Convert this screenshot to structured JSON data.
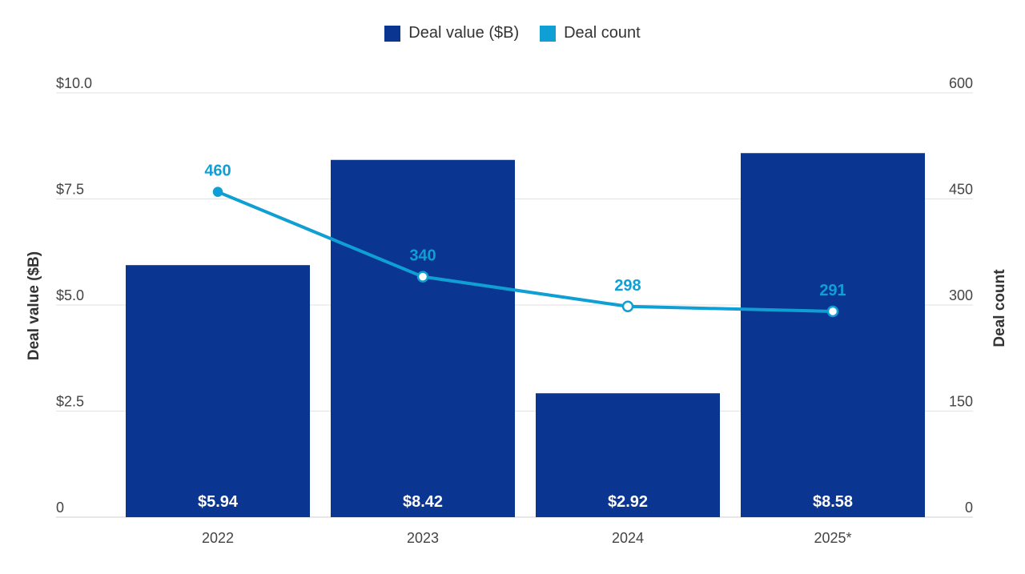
{
  "colors": {
    "bar": "#0a3591",
    "line": "#0f9fd4",
    "grid": "#e2e2e2",
    "text": "#444444"
  },
  "chart_data": {
    "type": "bar",
    "categories": [
      "2022",
      "2023",
      "2024",
      "2025*"
    ],
    "series": [
      {
        "name": "Deal value ($B)",
        "axis": "left",
        "type": "bar",
        "values": [
          5.94,
          8.42,
          2.92,
          8.58
        ],
        "labels": [
          "$5.94",
          "$8.42",
          "$2.92",
          "$8.58"
        ]
      },
      {
        "name": "Deal count",
        "axis": "right",
        "type": "line",
        "values": [
          460,
          340,
          298,
          291
        ],
        "labels": [
          "460",
          "340",
          "298",
          "291"
        ]
      }
    ],
    "ylabel_left": "Deal value ($B)",
    "ylabel_right": "Deal count",
    "ylim_left": [
      0,
      10
    ],
    "ylim_right": [
      0,
      600
    ],
    "yticks_left": [
      "0",
      "$2.5",
      "$5.0",
      "$7.5",
      "$10.0"
    ],
    "yticks_right": [
      "0",
      "150",
      "300",
      "450",
      "600"
    ],
    "legend": [
      "Deal value ($B)",
      "Deal count"
    ],
    "legend_position": "top-center",
    "grid": true
  }
}
